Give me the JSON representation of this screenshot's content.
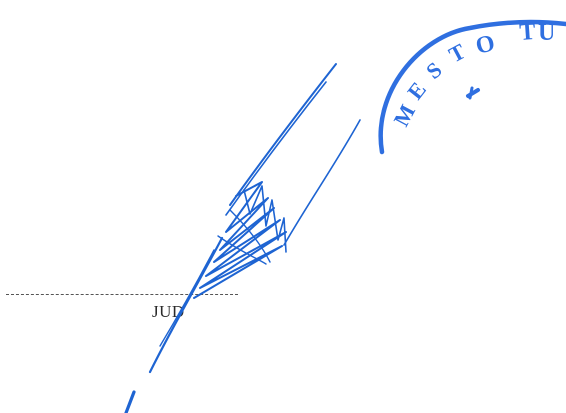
{
  "document": {
    "signer_name": "JUD",
    "stamp_text": "MESTO TU",
    "ink_color": "#1e64d2",
    "stamp_color": "#2f6fe0"
  }
}
